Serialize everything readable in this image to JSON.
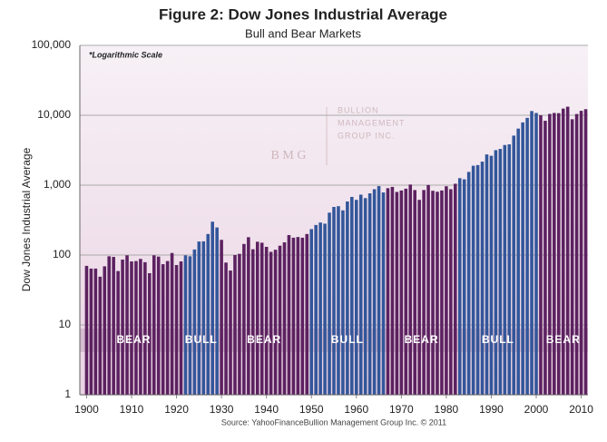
{
  "chart_data": {
    "type": "bar",
    "title": "Figure 2: Dow Jones Industrial Average",
    "subtitle": "Bull and Bear Markets",
    "y_label": "Dow Jones Industrial Average",
    "note": "*Logarithmic Scale",
    "source": "Source: YahooFinanceBullion  Management Group Inc. © 2011",
    "watermark": {
      "lines": [
        "BULLION",
        "MANAGEMENT",
        "GROUP INC."
      ],
      "mark": "B M G"
    },
    "log_scale": true,
    "grid": true,
    "x": [
      1900,
      1901,
      1902,
      1903,
      1904,
      1905,
      1906,
      1907,
      1908,
      1909,
      1910,
      1911,
      1912,
      1913,
      1914,
      1915,
      1916,
      1917,
      1918,
      1919,
      1920,
      1921,
      1922,
      1923,
      1924,
      1925,
      1926,
      1927,
      1928,
      1929,
      1930,
      1931,
      1932,
      1933,
      1934,
      1935,
      1936,
      1937,
      1938,
      1939,
      1940,
      1941,
      1942,
      1943,
      1944,
      1945,
      1946,
      1947,
      1948,
      1949,
      1950,
      1951,
      1952,
      1953,
      1954,
      1955,
      1956,
      1957,
      1958,
      1959,
      1960,
      1961,
      1962,
      1963,
      1964,
      1965,
      1966,
      1967,
      1968,
      1969,
      1970,
      1971,
      1972,
      1973,
      1974,
      1975,
      1976,
      1977,
      1978,
      1979,
      1980,
      1981,
      1982,
      1983,
      1984,
      1985,
      1986,
      1987,
      1988,
      1989,
      1990,
      1991,
      1992,
      1993,
      1994,
      1995,
      1996,
      1997,
      1998,
      1999,
      2000,
      2001,
      2002,
      2003,
      2004,
      2005,
      2006,
      2007,
      2008,
      2009,
      2010,
      2011
    ],
    "values": [
      70,
      64,
      64,
      49,
      69,
      96,
      94,
      59,
      86,
      99,
      81,
      82,
      88,
      79,
      55,
      99,
      95,
      74,
      82,
      107,
      72,
      81,
      99,
      96,
      120,
      156,
      157,
      200,
      300,
      248,
      165,
      78,
      60,
      100,
      104,
      144,
      180,
      121,
      155,
      150,
      131,
      111,
      119,
      136,
      152,
      193,
      177,
      181,
      177,
      200,
      235,
      269,
      292,
      281,
      404,
      488,
      500,
      436,
      584,
      679,
      616,
      731,
      652,
      763,
      874,
      969,
      786,
      905,
      944,
      800,
      839,
      890,
      1020,
      851,
      616,
      852,
      1005,
      831,
      805,
      839,
      964,
      875,
      1047,
      1259,
      1212,
      1547,
      1896,
      1939,
      2169,
      2753,
      2634,
      3169,
      3301,
      3754,
      3834,
      5117,
      6448,
      7908,
      9181,
      11497,
      10787,
      10022,
      8342,
      10454,
      10783,
      10718,
      12463,
      13265,
      8776,
      10428,
      11578,
      12218
    ],
    "periods": [
      {
        "label": "BEAR",
        "start": 1900,
        "end": 1921,
        "color": "#5c2160"
      },
      {
        "label": "BULL",
        "start": 1922,
        "end": 1929,
        "color": "#33569a"
      },
      {
        "label": "BEAR",
        "start": 1930,
        "end": 1949,
        "color": "#5c2160"
      },
      {
        "label": "BULL",
        "start": 1950,
        "end": 1966,
        "color": "#33569a"
      },
      {
        "label": "BEAR",
        "start": 1967,
        "end": 1982,
        "color": "#5c2160"
      },
      {
        "label": "BULL",
        "start": 1983,
        "end": 2000,
        "color": "#33569a"
      },
      {
        "label": "BEAR",
        "start": 2001,
        "end": 2011,
        "color": "#5c2160"
      }
    ],
    "xlim": [
      1898.5,
      2011.5
    ],
    "xticks": [
      1900,
      1910,
      1920,
      1930,
      1940,
      1950,
      1960,
      1970,
      1980,
      1990,
      2000,
      2010
    ],
    "ylim": [
      1,
      100000
    ],
    "yticks": [
      1,
      10,
      100,
      {
        "value": 1000,
        "label": "1,000"
      },
      {
        "value": 10000,
        "label": "10,000"
      },
      {
        "value": 100000,
        "label": "100,000"
      }
    ]
  }
}
